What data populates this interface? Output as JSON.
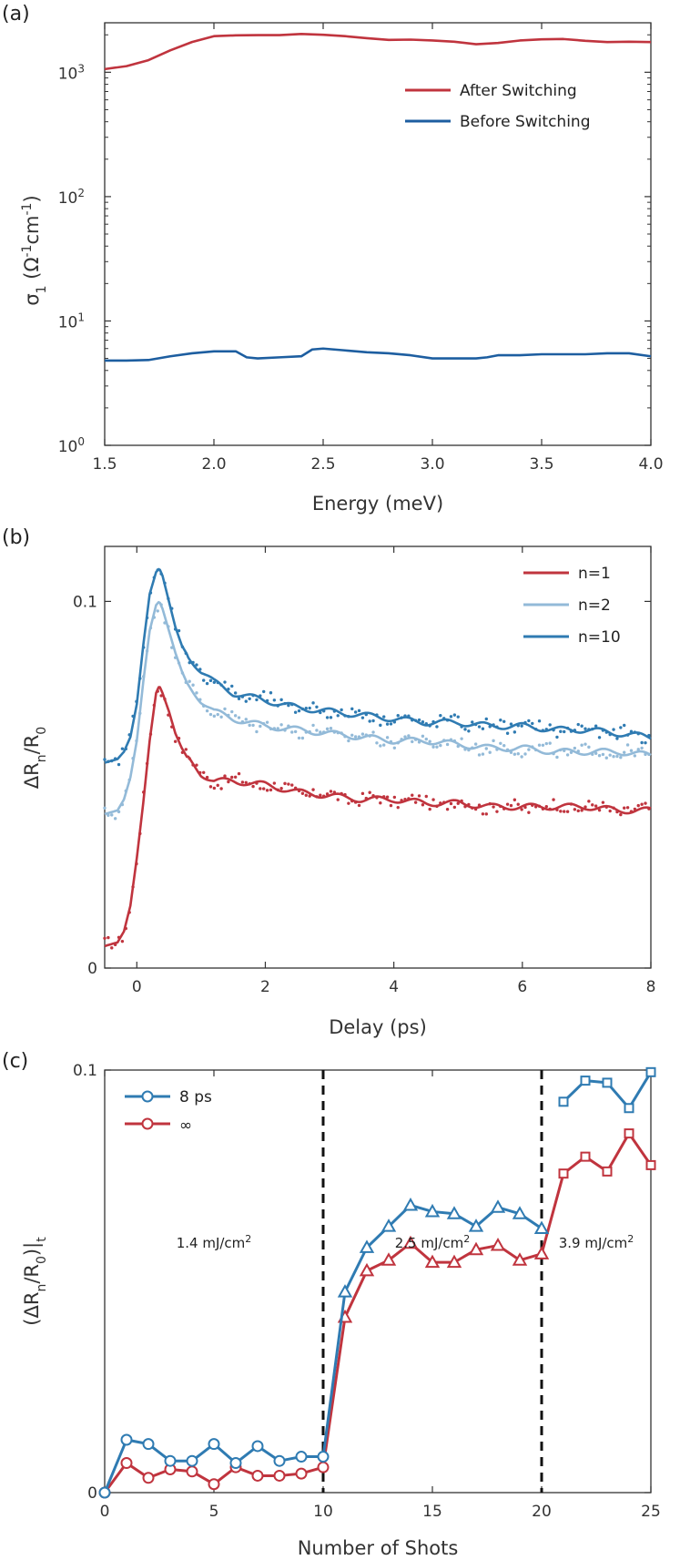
{
  "colors": {
    "red": "#c0343e",
    "blue": "#1d5ea0",
    "lightblue": "#93bad8",
    "midblue": "#2f7bb2",
    "axis": "#333333"
  },
  "chart_data": [
    {
      "panel_label": "(a)",
      "type": "line",
      "xlabel": "Energy (meV)",
      "ylabel": "σ1 (Ω⁻¹cm⁻¹)",
      "ylabel_parts": [
        "σ",
        "1",
        " (Ω",
        "-1",
        "cm",
        "-1",
        ")"
      ],
      "xlim": [
        1.5,
        4.0
      ],
      "ylim": [
        1,
        2500
      ],
      "yscale": "log",
      "xticks": [
        1.5,
        2.0,
        2.5,
        3.0,
        3.5,
        4.0
      ],
      "xtick_labels": [
        "1.5",
        "2.0",
        "2.5",
        "3.0",
        "3.5",
        "4.0"
      ],
      "yticks": [
        1,
        10,
        100,
        1000
      ],
      "ytick_exponents": [
        "0",
        "1",
        "2",
        "3"
      ],
      "ytick_base": "10",
      "grid": false,
      "legend_position": "top-right",
      "series": [
        {
          "name": "After Switching",
          "color": "red",
          "x": [
            1.5,
            1.6,
            1.7,
            1.8,
            1.9,
            2.0,
            2.1,
            2.2,
            2.3,
            2.4,
            2.5,
            2.6,
            2.7,
            2.8,
            2.9,
            3.0,
            3.1,
            3.2,
            3.3,
            3.4,
            3.5,
            3.6,
            3.7,
            3.8,
            3.9,
            4.0
          ],
          "y": [
            1060,
            1120,
            1250,
            1500,
            1750,
            1950,
            1980,
            1990,
            1990,
            2030,
            2000,
            1950,
            1880,
            1820,
            1830,
            1800,
            1760,
            1680,
            1720,
            1800,
            1840,
            1850,
            1790,
            1750,
            1760,
            1750
          ]
        },
        {
          "name": "Before Switching",
          "color": "blue",
          "x": [
            1.5,
            1.6,
            1.7,
            1.8,
            1.9,
            2.0,
            2.1,
            2.15,
            2.2,
            2.3,
            2.4,
            2.45,
            2.5,
            2.6,
            2.7,
            2.8,
            2.9,
            3.0,
            3.1,
            3.2,
            3.25,
            3.3,
            3.4,
            3.5,
            3.6,
            3.7,
            3.8,
            3.9,
            4.0
          ],
          "y": [
            4.8,
            4.8,
            4.85,
            5.2,
            5.5,
            5.7,
            5.7,
            5.1,
            5.0,
            5.1,
            5.2,
            5.9,
            6.0,
            5.8,
            5.6,
            5.5,
            5.3,
            5.0,
            5.0,
            5.0,
            5.1,
            5.3,
            5.3,
            5.4,
            5.4,
            5.4,
            5.5,
            5.5,
            5.2
          ]
        }
      ]
    },
    {
      "panel_label": "(b)",
      "type": "line",
      "xlabel": "Delay (ps)",
      "ylabel": "ΔRn/R0",
      "ylabel_parts": [
        "ΔR",
        "n",
        "/R",
        "0"
      ],
      "xlim": [
        -0.5,
        8
      ],
      "ylim": [
        0,
        0.115
      ],
      "xticks": [
        0,
        2,
        4,
        6,
        8
      ],
      "xtick_labels": [
        "0",
        "2",
        "4",
        "6",
        "8"
      ],
      "yticks": [
        0,
        0.1
      ],
      "ytick_labels": [
        "0",
        "0.1"
      ],
      "grid": false,
      "legend_position": "top-right",
      "series": [
        {
          "name": "n=1",
          "color": "red",
          "x": [
            -0.5,
            -0.3,
            -0.2,
            -0.1,
            0.0,
            0.1,
            0.2,
            0.3,
            0.35,
            0.4,
            0.5,
            0.6,
            0.7,
            0.8,
            1.0,
            1.2,
            1.5,
            2.0,
            2.5,
            3.0,
            3.5,
            4.0,
            4.5,
            5.0,
            5.5,
            6.0,
            6.5,
            7.0,
            7.5,
            8.0
          ],
          "y": [
            0.006,
            0.007,
            0.01,
            0.017,
            0.03,
            0.045,
            0.062,
            0.075,
            0.077,
            0.075,
            0.07,
            0.064,
            0.06,
            0.057,
            0.053,
            0.051,
            0.051,
            0.05,
            0.048,
            0.047,
            0.046,
            0.046,
            0.045,
            0.045,
            0.044,
            0.044,
            0.044,
            0.044,
            0.043,
            0.043
          ]
        },
        {
          "name": "n=2",
          "color": "lightblue",
          "x": [
            -0.5,
            -0.3,
            -0.2,
            -0.1,
            0.0,
            0.1,
            0.2,
            0.3,
            0.35,
            0.4,
            0.5,
            0.6,
            0.7,
            0.8,
            1.0,
            1.2,
            1.5,
            2.0,
            2.5,
            3.0,
            3.5,
            4.0,
            4.5,
            5.0,
            5.5,
            6.0,
            6.5,
            7.0,
            7.5,
            8.0
          ],
          "y": [
            0.042,
            0.043,
            0.046,
            0.052,
            0.062,
            0.078,
            0.092,
            0.099,
            0.1,
            0.098,
            0.092,
            0.086,
            0.081,
            0.077,
            0.073,
            0.07,
            0.068,
            0.066,
            0.065,
            0.064,
            0.063,
            0.062,
            0.062,
            0.061,
            0.06,
            0.06,
            0.059,
            0.059,
            0.059,
            0.058
          ]
        },
        {
          "name": "n=10",
          "color": "midblue",
          "x": [
            -0.5,
            -0.3,
            -0.2,
            -0.1,
            0.0,
            0.1,
            0.2,
            0.3,
            0.35,
            0.4,
            0.5,
            0.6,
            0.7,
            0.8,
            1.0,
            1.2,
            1.5,
            2.0,
            2.5,
            3.0,
            3.5,
            4.0,
            4.5,
            5.0,
            5.5,
            6.0,
            6.5,
            7.0,
            7.5,
            8.0
          ],
          "y": [
            0.056,
            0.057,
            0.059,
            0.063,
            0.072,
            0.088,
            0.102,
            0.108,
            0.109,
            0.107,
            0.1,
            0.093,
            0.088,
            0.085,
            0.081,
            0.078,
            0.075,
            0.073,
            0.071,
            0.07,
            0.069,
            0.068,
            0.067,
            0.067,
            0.066,
            0.066,
            0.065,
            0.065,
            0.064,
            0.063
          ]
        }
      ]
    },
    {
      "panel_label": "(c)",
      "type": "line",
      "xlabel": "Number of Shots",
      "ylabel": "(ΔRn/R0)|t",
      "ylabel_parts": [
        "(ΔR",
        "n",
        "/R",
        "0",
        ")|",
        "t"
      ],
      "xlim": [
        0,
        25
      ],
      "ylim": [
        0,
        0.1
      ],
      "xticks": [
        0,
        5,
        10,
        15,
        20,
        25
      ],
      "xtick_labels": [
        "0",
        "5",
        "10",
        "15",
        "20",
        "25"
      ],
      "yticks": [
        0,
        0.1
      ],
      "ytick_labels": [
        "0",
        "0.1"
      ],
      "grid": false,
      "legend_position": "top-left",
      "vlines": [
        10,
        20
      ],
      "annotations": [
        {
          "text": "1.4 mJ/cm",
          "sup": "2",
          "x": 5,
          "y": 0.058
        },
        {
          "text": "2.5 mJ/cm",
          "sup": "2",
          "x": 15,
          "y": 0.058
        },
        {
          "text": "3.9 mJ/cm",
          "sup": "2",
          "x": 22.5,
          "y": 0.058
        }
      ],
      "series": [
        {
          "name": "8 ps",
          "color": "midblue",
          "x": [
            0,
            1,
            2,
            3,
            4,
            5,
            6,
            7,
            8,
            9,
            10,
            11,
            12,
            13,
            14,
            15,
            16,
            17,
            18,
            19,
            20,
            21,
            22,
            23,
            24,
            25
          ],
          "y": [
            0.0,
            0.0125,
            0.0115,
            0.0075,
            0.0075,
            0.0115,
            0.007,
            0.011,
            0.0075,
            0.0085,
            0.0085,
            0.0475,
            0.058,
            0.063,
            0.068,
            0.0665,
            0.066,
            0.063,
            0.0675,
            0.066,
            0.0625,
            0.0925,
            0.0975,
            0.097,
            0.091,
            0.0995
          ],
          "markers": [
            "circle",
            "circle",
            "circle",
            "circle",
            "circle",
            "circle",
            "circle",
            "circle",
            "circle",
            "circle",
            "circle",
            "triangle",
            "triangle",
            "triangle",
            "triangle",
            "triangle",
            "triangle",
            "triangle",
            "triangle",
            "triangle",
            "triangle",
            "square",
            "square",
            "square",
            "square",
            "square"
          ],
          "breaks_after": [
            20
          ]
        },
        {
          "name": "∞",
          "color": "red",
          "x": [
            0,
            1,
            2,
            3,
            4,
            5,
            6,
            7,
            8,
            9,
            10,
            11,
            12,
            13,
            14,
            15,
            16,
            17,
            18,
            19,
            20,
            21,
            22,
            23,
            24,
            25
          ],
          "y": [
            0.0,
            0.007,
            0.0035,
            0.0055,
            0.005,
            0.002,
            0.006,
            0.004,
            0.004,
            0.0045,
            0.006,
            0.0415,
            0.0525,
            0.055,
            0.059,
            0.0545,
            0.0545,
            0.0575,
            0.0585,
            0.055,
            0.0565,
            0.0755,
            0.0795,
            0.076,
            0.085,
            0.0775
          ],
          "markers": [
            "circle",
            "circle",
            "circle",
            "circle",
            "circle",
            "circle",
            "circle",
            "circle",
            "circle",
            "circle",
            "circle",
            "triangle",
            "triangle",
            "triangle",
            "triangle",
            "triangle",
            "triangle",
            "triangle",
            "triangle",
            "triangle",
            "triangle",
            "square",
            "square",
            "square",
            "square",
            "square"
          ],
          "breaks_after": []
        }
      ]
    }
  ]
}
